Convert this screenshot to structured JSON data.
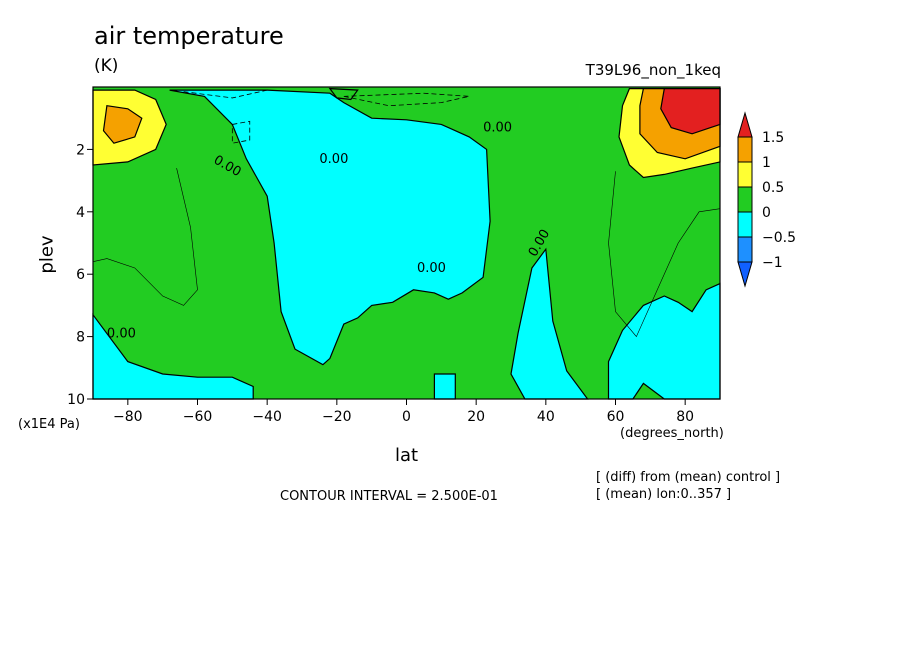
{
  "chart_data": {
    "type": "contour",
    "title": "air temperature",
    "units_label": "(K)",
    "experiment": "T39L96_non_1keq",
    "xlabel": "lat",
    "xunits": "(degrees_north)",
    "ylabel": "plev",
    "yunits": "(x1E4 Pa)",
    "xlim": [
      -90,
      90
    ],
    "ylim": [
      10,
      0
    ],
    "y_inverted": true,
    "x_ticks": [
      -80,
      -60,
      -40,
      -20,
      0,
      20,
      40,
      60,
      80
    ],
    "y_ticks": [
      2,
      4,
      6,
      8,
      10
    ],
    "contour_interval_text": "CONTOUR INTERVAL = 2.500E-01",
    "footnotes": [
      "[ (diff) from (mean) control ]",
      "[ (mean) lon:0..357 ]"
    ],
    "contour_labels": [
      "0.00",
      "0.00",
      "0.00",
      "0.00",
      "0.00",
      "0.00"
    ],
    "colorbar": {
      "levels": [
        "1.5",
        "1",
        "0.5",
        "0",
        "-0.5",
        "-1"
      ],
      "colors": [
        "#e32020",
        "#f5a100",
        "#ffff33",
        "#22cc22",
        "#00ffff",
        "#1e90ff",
        "#1060ff"
      ]
    },
    "regions": [
      {
        "level": "negative",
        "color": "#00ffff",
        "points": [
          [
            -68,
            0.1
          ],
          [
            -58,
            0.3
          ],
          [
            -50,
            1.2
          ],
          [
            -46,
            2.3
          ],
          [
            -40,
            3.5
          ],
          [
            -38,
            5
          ],
          [
            -36,
            7.2
          ],
          [
            -32,
            8.4
          ],
          [
            -24,
            8.9
          ],
          [
            -22,
            8.7
          ],
          [
            -18,
            7.6
          ],
          [
            -14,
            7.4
          ],
          [
            -10,
            7.0
          ],
          [
            -4,
            6.9
          ],
          [
            2,
            6.5
          ],
          [
            8,
            6.6
          ],
          [
            12,
            6.8
          ],
          [
            16,
            6.6
          ],
          [
            22,
            6.1
          ],
          [
            24,
            4.3
          ],
          [
            23,
            2.0
          ],
          [
            18,
            1.6
          ],
          [
            10,
            1.2
          ],
          [
            0,
            1.05
          ],
          [
            -10,
            1.0
          ],
          [
            -18,
            0.5
          ],
          [
            -22,
            0.2
          ],
          [
            -40,
            0.1
          ]
        ]
      },
      {
        "level": "negative",
        "color": "#00ffff",
        "points": [
          [
            30,
            9.2
          ],
          [
            32,
            7.9
          ],
          [
            36,
            5.8
          ],
          [
            40,
            5.2
          ],
          [
            42,
            7.5
          ],
          [
            46,
            9.1
          ],
          [
            52,
            10
          ],
          [
            34,
            10
          ]
        ]
      },
      {
        "level": "negative",
        "color": "#00ffff",
        "points": [
          [
            -90,
            7.3
          ],
          [
            -80,
            8.8
          ],
          [
            -70,
            9.2
          ],
          [
            -60,
            9.3
          ],
          [
            -50,
            9.3
          ],
          [
            -44,
            9.6
          ],
          [
            -44,
            10
          ],
          [
            -90,
            10
          ]
        ]
      },
      {
        "level": "negative",
        "color": "#00ffff",
        "points": [
          [
            58,
            10
          ],
          [
            58,
            8.8
          ],
          [
            62,
            7.8
          ],
          [
            68,
            7.0
          ],
          [
            74,
            6.7
          ],
          [
            78,
            6.9
          ],
          [
            82,
            7.2
          ],
          [
            86,
            6.5
          ],
          [
            90,
            6.3
          ],
          [
            90,
            10
          ],
          [
            74,
            10
          ],
          [
            68,
            9.5
          ],
          [
            65,
            10
          ]
        ]
      },
      {
        "level": "negative",
        "color": "#00ffff",
        "points": [
          [
            8,
            9.2
          ],
          [
            14,
            9.2
          ],
          [
            14,
            10
          ],
          [
            8,
            10
          ]
        ]
      },
      {
        "level": "positive",
        "color": "#22cc22",
        "points": [
          [
            -22,
            0.05
          ],
          [
            -20,
            0.35
          ],
          [
            -16,
            0.4
          ],
          [
            -14,
            0.1
          ]
        ]
      },
      {
        "level": "0.5-1.0",
        "color": "#ffff33",
        "points": [
          [
            -90,
            0.1
          ],
          [
            -78,
            0.1
          ],
          [
            -72,
            0.4
          ],
          [
            -69,
            1.2
          ],
          [
            -72,
            2.0
          ],
          [
            -80,
            2.4
          ],
          [
            -90,
            2.5
          ]
        ]
      },
      {
        "level": "1.0-1.5",
        "color": "#f5a100",
        "points": [
          [
            -86,
            0.6
          ],
          [
            -80,
            0.7
          ],
          [
            -76,
            1.0
          ],
          [
            -78,
            1.6
          ],
          [
            -84,
            1.8
          ],
          [
            -87,
            1.4
          ]
        ]
      },
      {
        "level": "0.5-1.0",
        "color": "#ffff33",
        "points": [
          [
            64,
            0.05
          ],
          [
            90,
            0.05
          ],
          [
            90,
            2.4
          ],
          [
            82,
            2.6
          ],
          [
            74,
            2.8
          ],
          [
            68,
            2.9
          ],
          [
            64,
            2.5
          ],
          [
            61,
            1.6
          ],
          [
            62,
            0.6
          ]
        ]
      },
      {
        "level": "1.0-1.5",
        "color": "#f5a100",
        "points": [
          [
            68,
            0.05
          ],
          [
            90,
            0.05
          ],
          [
            90,
            1.9
          ],
          [
            80,
            2.3
          ],
          [
            72,
            2.1
          ],
          [
            67,
            1.5
          ],
          [
            67,
            0.6
          ]
        ]
      },
      {
        "level": ">1.5",
        "color": "#e32020",
        "points": [
          [
            74,
            0.05
          ],
          [
            90,
            0.05
          ],
          [
            90,
            1.2
          ],
          [
            82,
            1.5
          ],
          [
            76,
            1.3
          ],
          [
            73,
            0.7
          ]
        ]
      }
    ]
  }
}
